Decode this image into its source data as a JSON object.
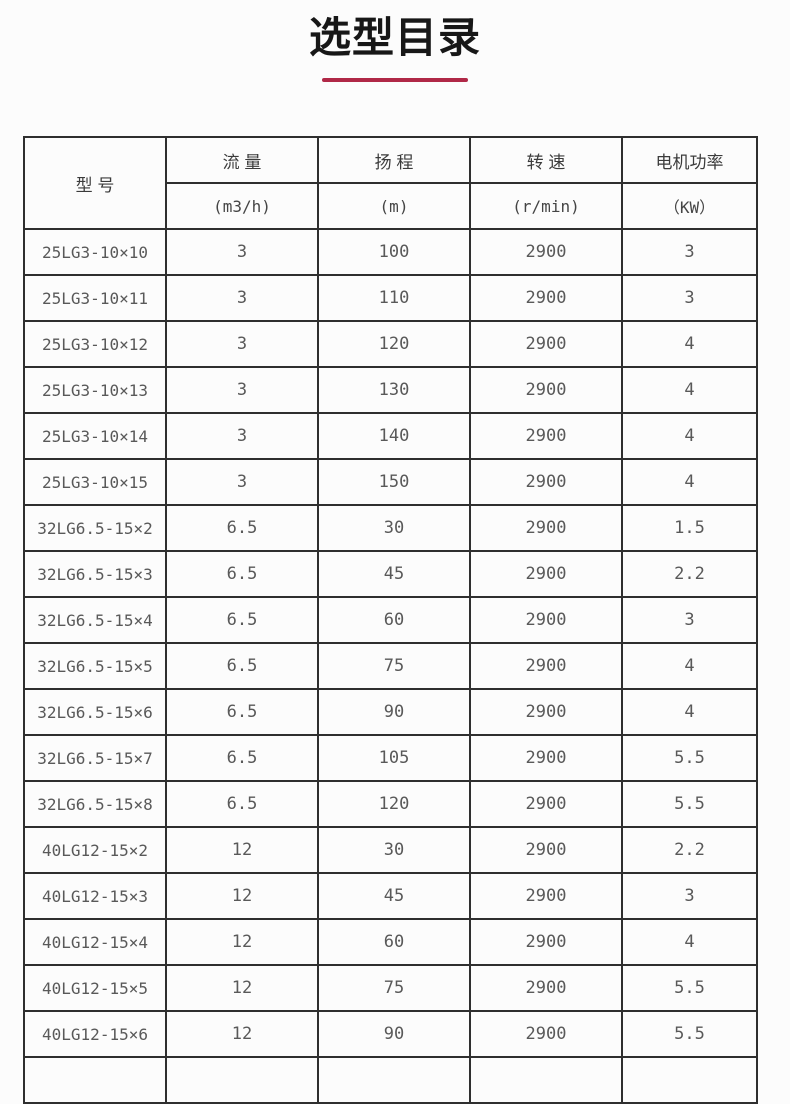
{
  "header": {
    "title": "选型目录",
    "accent_color": "#b02847"
  },
  "table": {
    "columns": [
      {
        "label": "型 号",
        "unit": ""
      },
      {
        "label": "流 量",
        "unit": "(m3/h)"
      },
      {
        "label": "扬 程",
        "unit": "(m)"
      },
      {
        "label": "转 速",
        "unit": "(r/min)"
      },
      {
        "label": "电机功率",
        "unit": "（KW）"
      }
    ],
    "rows": [
      [
        "25LG3-10×10",
        "3",
        "100",
        "2900",
        "3"
      ],
      [
        "25LG3-10×11",
        "3",
        "110",
        "2900",
        "3"
      ],
      [
        "25LG3-10×12",
        "3",
        "120",
        "2900",
        "4"
      ],
      [
        "25LG3-10×13",
        "3",
        "130",
        "2900",
        "4"
      ],
      [
        "25LG3-10×14",
        "3",
        "140",
        "2900",
        "4"
      ],
      [
        "25LG3-10×15",
        "3",
        "150",
        "2900",
        "4"
      ],
      [
        "32LG6.5-15×2",
        "6.5",
        "30",
        "2900",
        "1.5"
      ],
      [
        "32LG6.5-15×3",
        "6.5",
        "45",
        "2900",
        "2.2"
      ],
      [
        "32LG6.5-15×4",
        "6.5",
        "60",
        "2900",
        "3"
      ],
      [
        "32LG6.5-15×5",
        "6.5",
        "75",
        "2900",
        "4"
      ],
      [
        "32LG6.5-15×6",
        "6.5",
        "90",
        "2900",
        "4"
      ],
      [
        "32LG6.5-15×7",
        "6.5",
        "105",
        "2900",
        "5.5"
      ],
      [
        "32LG6.5-15×8",
        "6.5",
        "120",
        "2900",
        "5.5"
      ],
      [
        "40LG12-15×2",
        "12",
        "30",
        "2900",
        "2.2"
      ],
      [
        "40LG12-15×3",
        "12",
        "45",
        "2900",
        "3"
      ],
      [
        "40LG12-15×4",
        "12",
        "60",
        "2900",
        "4"
      ],
      [
        "40LG12-15×5",
        "12",
        "75",
        "2900",
        "5.5"
      ],
      [
        "40LG12-15×6",
        "12",
        "90",
        "2900",
        "5.5"
      ]
    ]
  }
}
